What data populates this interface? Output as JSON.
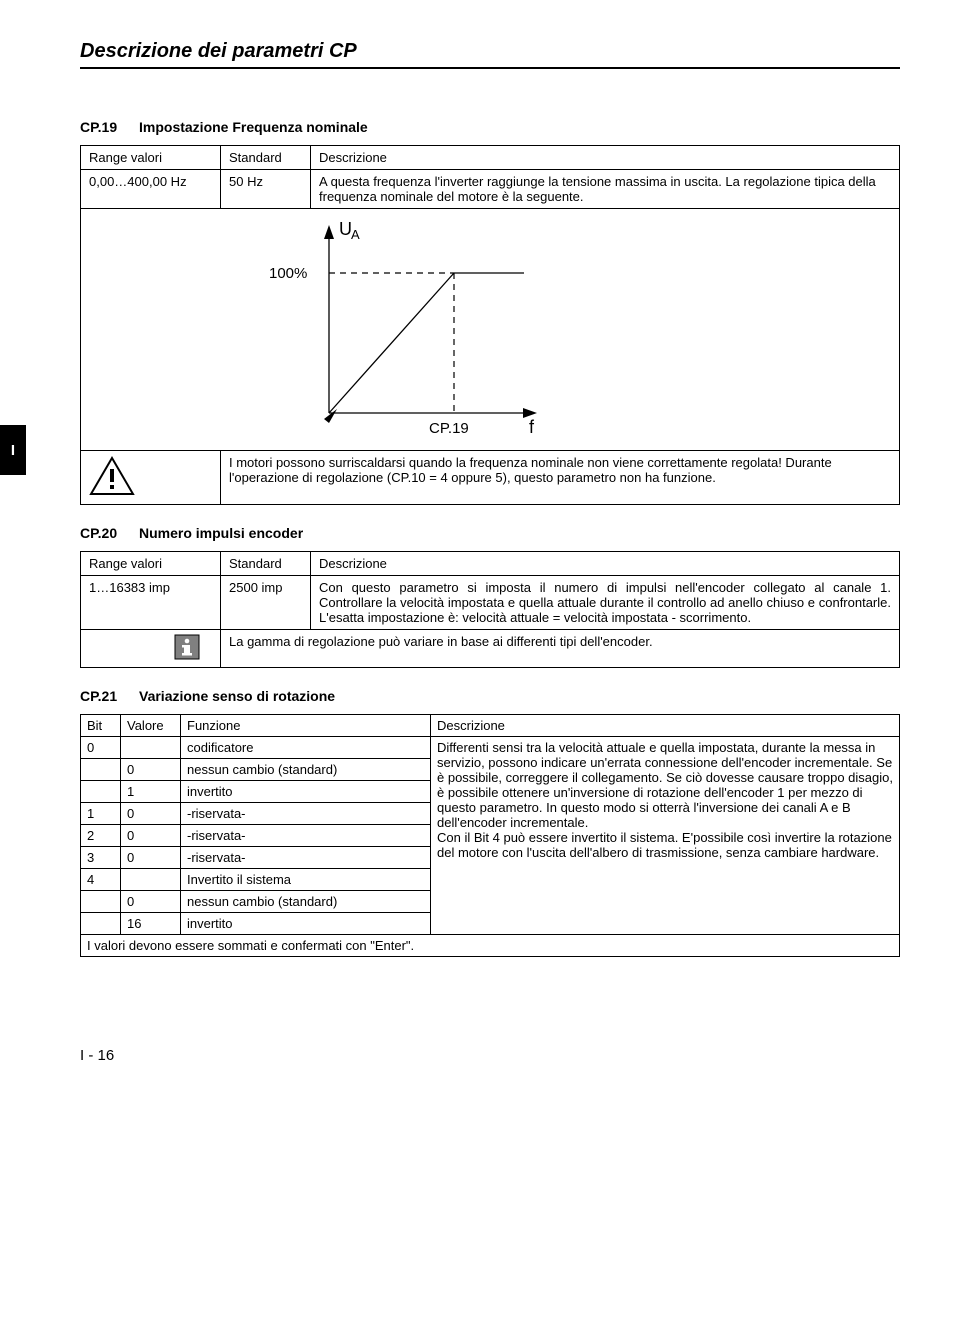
{
  "page_title": "Descrizione dei parametri CP",
  "side_index": "I",
  "footer": "I - 16",
  "cp19": {
    "code": "CP.19",
    "title": "Impostazione Frequenza nominale",
    "headers": {
      "range": "Range valori",
      "std": "Standard",
      "desc": "Descrizione"
    },
    "range": "0,00…400,00 Hz",
    "std": "50 Hz",
    "desc": "A questa frequenza l'inverter raggiunge la tensione massima in uscita. La regolazione tipica della frequenza nominale del motore è la seguente.",
    "chart": {
      "y_label": "UA",
      "y_tick": "100%",
      "x_tick": "CP.19",
      "x_label": "f"
    },
    "warning_text": "I motori possono surriscaldarsi quando la frequenza nominale non viene correttamente regolata! Durante l'operazione di regolazione (CP.10 = 4 oppure 5), questo parametro non ha funzione."
  },
  "cp20": {
    "code": "CP.20",
    "title": "Numero impulsi encoder",
    "headers": {
      "range": "Range valori",
      "std": "Standard",
      "desc": "Descrizione"
    },
    "range": "1…16383 imp",
    "std": "2500 imp",
    "desc": "Con questo parametro si imposta il numero di impulsi nell'encoder collegato al canale 1. Controllare la velocità impostata e quella attuale durante il controllo ad anello chiuso e confrontarle. L'esatta impostazione è: velocità attuale = velocità impostata - scorrimento.",
    "info_text": "La gamma di regolazione può variare in base ai differenti tipi dell'encoder."
  },
  "cp21": {
    "code": "CP.21",
    "title": "Variazione senso di rotazione",
    "headers": {
      "bit": "Bit",
      "val": "Valore",
      "func": "Funzione",
      "desc": "Descrizione"
    },
    "rows": [
      {
        "bit": "0",
        "val": "",
        "func": "codificatore"
      },
      {
        "bit": "",
        "val": "0",
        "func": "nessun cambio (standard)"
      },
      {
        "bit": "",
        "val": "1",
        "func": "invertito"
      },
      {
        "bit": "1",
        "val": "0",
        "func": "-riservata-"
      },
      {
        "bit": "2",
        "val": "0",
        "func": "-riservata-"
      },
      {
        "bit": "3",
        "val": "0",
        "func": "-riservata-"
      },
      {
        "bit": "4",
        "val": "",
        "func": "Invertito il sistema"
      },
      {
        "bit": "",
        "val": "0",
        "func": "nessun cambio (standard)"
      },
      {
        "bit": "",
        "val": "16",
        "func": "invertito"
      }
    ],
    "description": "Differenti sensi tra la velocità attuale e quella impostata, durante la messa in servizio, possono indicare un'errata connessione dell'encoder incrementale. Se è possibile, correggere il collegamento. Se ciò dovesse causare troppo disagio, è possibile ottenere un'inversione di rotazione dell'encoder 1 per mezzo di questo parametro. In questo modo si otterrà l'inversione dei canali A e B dell'encoder incrementale.\nCon il Bit 4 può essere invertito il sistema. E'possibile così invertire la rotazione del motore con l'uscita dell'albero di trasmissione, senza cambiare hardware.",
    "footnote": "I valori devono essere sommati e confermati con \"Enter\"."
  }
}
